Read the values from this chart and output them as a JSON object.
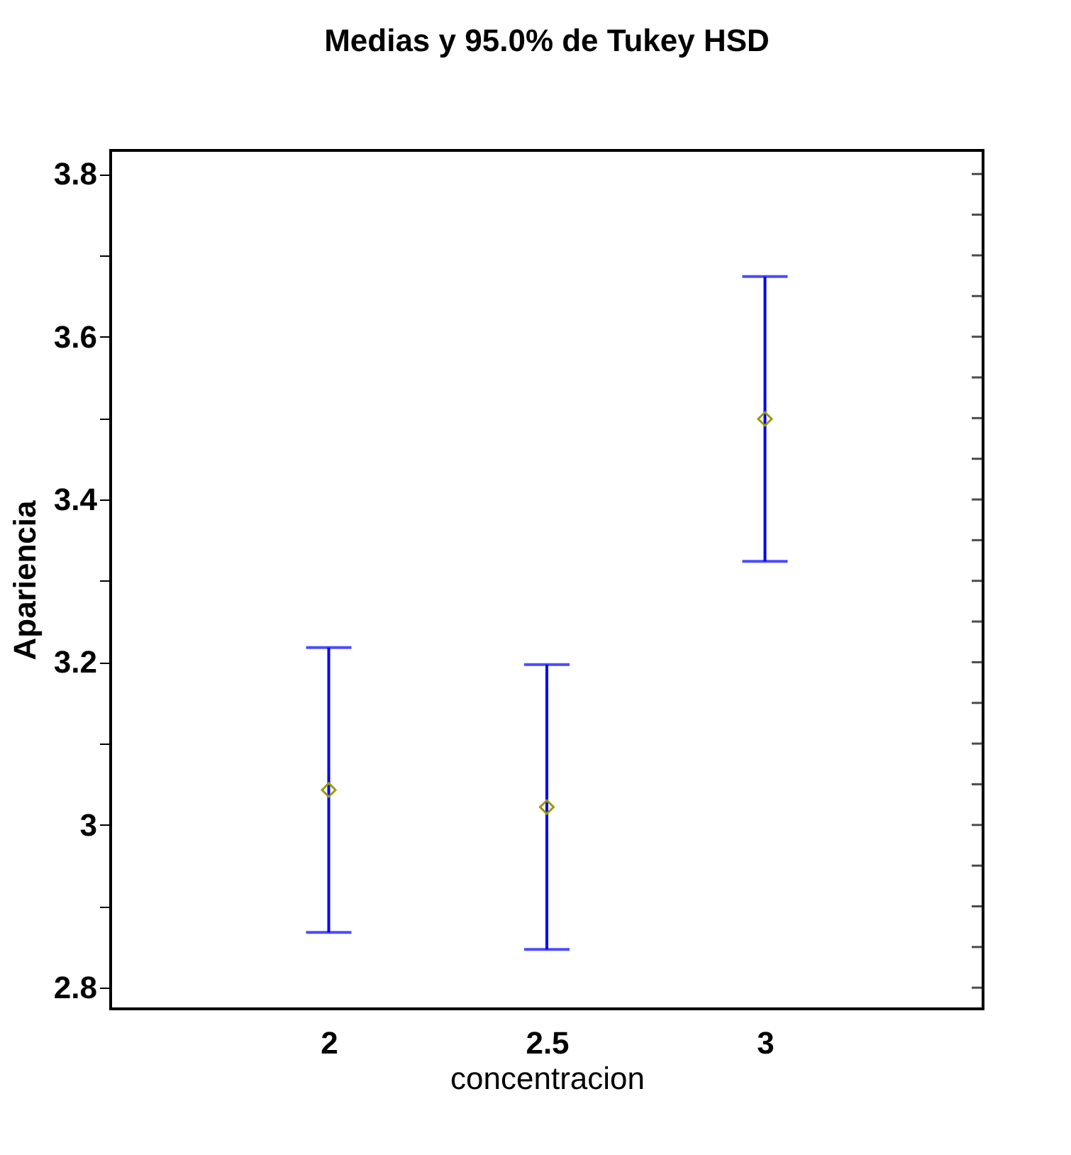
{
  "chart_data": {
    "type": "scatter",
    "title": "Medias y 95.0% de Tukey HSD",
    "xlabel": "concentracion",
    "ylabel": "Apariencia",
    "categories": [
      "2",
      "2.5",
      "3"
    ],
    "series": [
      {
        "color": "#999900",
        "values": [
          3.043,
          3.022,
          3.499
        ],
        "errors": [
          0.175,
          0.175,
          0.175
        ]
      }
    ],
    "marker": "diamond",
    "ylim": [
      2.774,
      3.829
    ],
    "yticks": [
      2.8,
      {
        "value": 2.85,
        "label": null
      },
      {
        "value": 2.9,
        "label": null
      },
      {
        "value": 2.95,
        "label": null
      },
      3,
      {
        "value": 3.05,
        "label": null
      },
      {
        "value": 3.1,
        "label": null
      },
      {
        "value": 3.15,
        "label": null
      },
      3.2,
      {
        "value": 3.25,
        "label": null
      },
      {
        "value": 3.3,
        "label": null
      },
      {
        "value": 3.35,
        "label": null
      },
      3.4,
      {
        "value": 3.45,
        "label": null
      },
      {
        "value": 3.5,
        "label": null
      },
      {
        "value": 3.55,
        "label": null
      },
      3.6,
      {
        "value": 3.65,
        "label": null
      },
      {
        "value": 3.7,
        "label": null
      },
      {
        "value": 3.75,
        "label": null
      },
      3.8
    ],
    "grid": false
  }
}
